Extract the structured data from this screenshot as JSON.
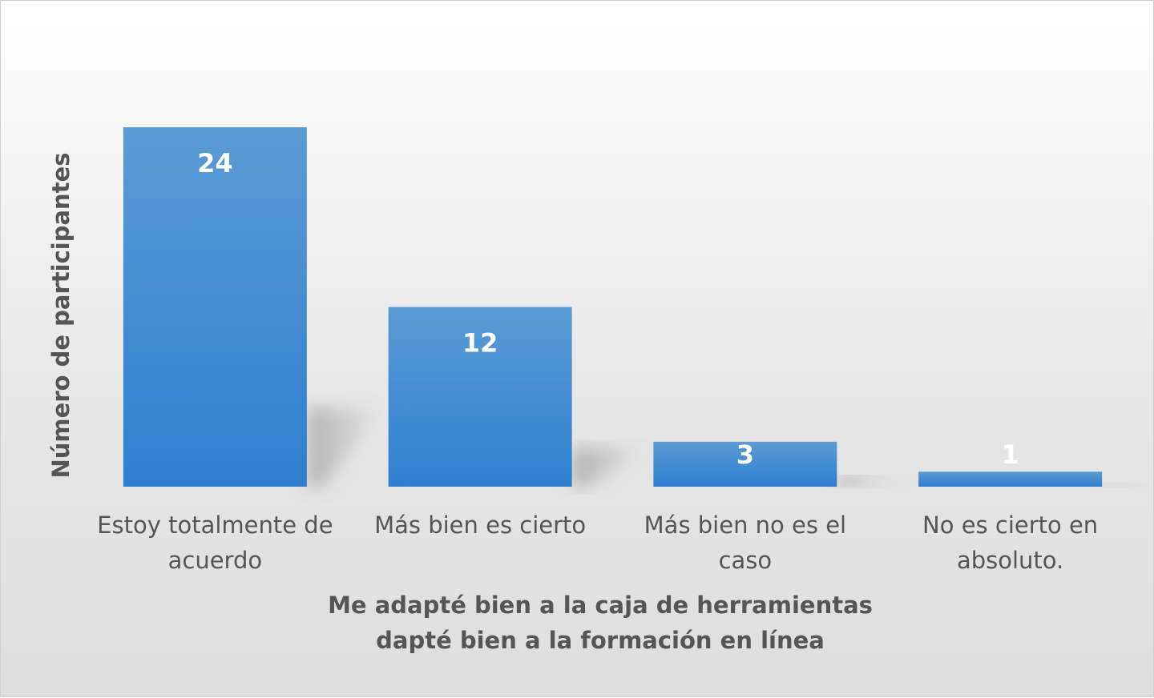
{
  "chart_data": {
    "type": "bar",
    "categories": [
      [
        "Estoy totalmente de",
        "acuerdo"
      ],
      [
        "Más bien es cierto"
      ],
      [
        "Más bien no es el",
        "caso"
      ],
      [
        "No es cierto en",
        "absoluto."
      ]
    ],
    "values": [
      24,
      12,
      3,
      1
    ],
    "data_labels": [
      "24",
      "12",
      "3",
      "1"
    ],
    "xlabel": [
      "Me adapté bien a la caja de herramientas",
      "dapté bien a la formación en línea"
    ],
    "ylabel": "Número de participantes",
    "ylim": [
      0,
      24
    ],
    "grid": false,
    "bar_color": "#3d89d4",
    "bar_color_light": "#5b9bd5",
    "label_color": "#555555"
  }
}
